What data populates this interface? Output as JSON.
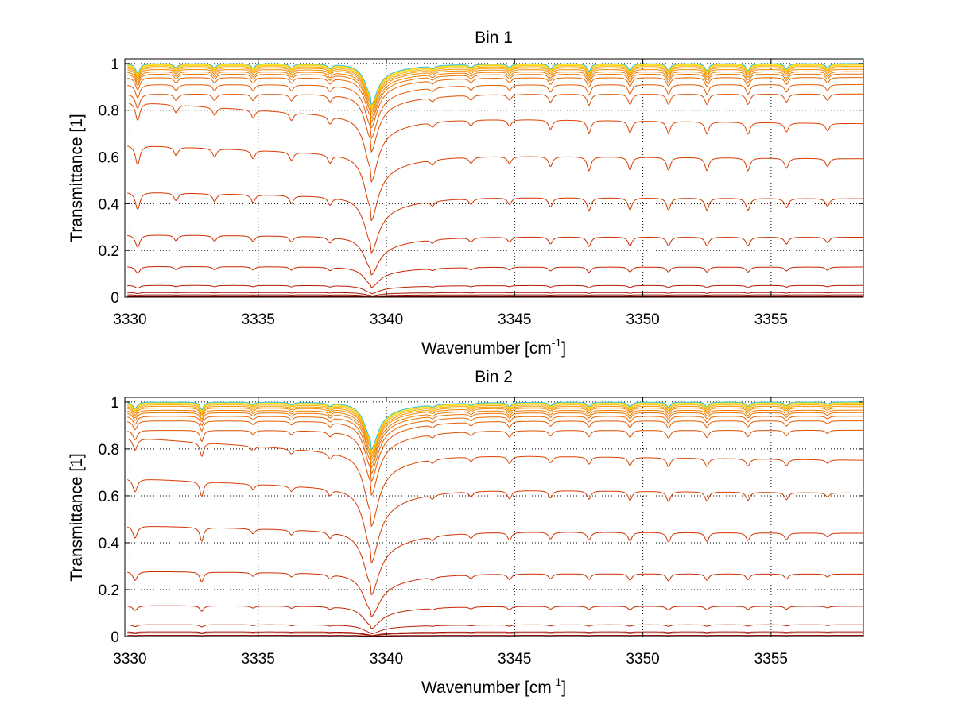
{
  "chart_data": [
    {
      "type": "line",
      "title": "Bin 1",
      "xlabel": "Wavenumber [cm",
      "xlabel_sup": "-1",
      "xlabel_end": "]",
      "ylabel": "Transmittance [1]",
      "xlim": [
        3329.8,
        3358.6
      ],
      "ylim": [
        0,
        1.02
      ],
      "xticks": [
        3330,
        3335,
        3340,
        3345,
        3350,
        3355
      ],
      "xticklabels": [
        "3330",
        "3335",
        "3340",
        "3345",
        "3350",
        "3355"
      ],
      "yticks": [
        0,
        0.2,
        0.4,
        0.6,
        0.8,
        1
      ],
      "yticklabels": [
        "0",
        "0.2",
        "0.4",
        "0.6",
        "0.8",
        "1"
      ],
      "grid": true,
      "baselines": [
        0.003,
        0.01,
        0.02,
        0.05,
        0.13,
        0.26,
        0.43,
        0.61,
        0.77,
        0.87,
        0.91,
        0.94,
        0.955,
        0.965,
        0.975,
        0.982,
        0.988,
        0.993,
        0.997,
        1.0
      ],
      "colors": [
        "#8b0000",
        "#9a0a00",
        "#a81400",
        "#b81e00",
        "#c52600",
        "#cc2e00",
        "#d23400",
        "#d83c00",
        "#dc4400",
        "#e04e00",
        "#e45a00",
        "#e86600",
        "#ec7200",
        "#f07e00",
        "#f48a00",
        "#f89800",
        "#fcb000",
        "#ffc800",
        "#ffe000",
        "#2fbfdf"
      ],
      "strong_line": {
        "x": 3339.4,
        "depth": 0.6,
        "width": 0.28
      },
      "lines": [
        {
          "x": 3330.3,
          "depth": 0.18,
          "width": 0.1
        },
        {
          "x": 3331.8,
          "depth": 0.08,
          "width": 0.09
        },
        {
          "x": 3333.3,
          "depth": 0.08,
          "width": 0.09
        },
        {
          "x": 3334.8,
          "depth": 0.08,
          "width": 0.09
        },
        {
          "x": 3336.3,
          "depth": 0.08,
          "width": 0.09
        },
        {
          "x": 3337.8,
          "depth": 0.08,
          "width": 0.09
        },
        {
          "x": 3341.8,
          "depth": 0.05,
          "width": 0.09
        },
        {
          "x": 3343.3,
          "depth": 0.06,
          "width": 0.09
        },
        {
          "x": 3344.8,
          "depth": 0.07,
          "width": 0.09
        },
        {
          "x": 3346.4,
          "depth": 0.1,
          "width": 0.09
        },
        {
          "x": 3347.9,
          "depth": 0.14,
          "width": 0.09
        },
        {
          "x": 3349.5,
          "depth": 0.13,
          "width": 0.09
        },
        {
          "x": 3351.0,
          "depth": 0.13,
          "width": 0.09
        },
        {
          "x": 3352.5,
          "depth": 0.13,
          "width": 0.09
        },
        {
          "x": 3354.1,
          "depth": 0.13,
          "width": 0.09
        },
        {
          "x": 3355.6,
          "depth": 0.1,
          "width": 0.09
        },
        {
          "x": 3357.2,
          "depth": 0.08,
          "width": 0.09
        }
      ]
    },
    {
      "type": "line",
      "title": "Bin 2",
      "xlabel": "Wavenumber [cm",
      "xlabel_sup": "-1",
      "xlabel_end": "]",
      "ylabel": "Transmittance [1]",
      "xlim": [
        3329.8,
        3358.6
      ],
      "ylim": [
        0,
        1.02
      ],
      "xticks": [
        3330,
        3335,
        3340,
        3345,
        3350,
        3355
      ],
      "xticklabels": [
        "3330",
        "3335",
        "3340",
        "3345",
        "3350",
        "3355"
      ],
      "yticks": [
        0,
        0.2,
        0.4,
        0.6,
        0.8,
        1
      ],
      "yticklabels": [
        "0",
        "0.2",
        "0.4",
        "0.6",
        "0.8",
        "1"
      ],
      "grid": true,
      "baselines": [
        0.005,
        0.015,
        0.02,
        0.05,
        0.13,
        0.27,
        0.45,
        0.63,
        0.78,
        0.88,
        0.92,
        0.94,
        0.955,
        0.965,
        0.975,
        0.982,
        0.988,
        0.993,
        0.997,
        1.0
      ],
      "colors": [
        "#8b0000",
        "#9a0a00",
        "#a81400",
        "#b81e00",
        "#c52600",
        "#cc2e00",
        "#d23400",
        "#d83c00",
        "#dc4400",
        "#e04e00",
        "#e45a00",
        "#e86600",
        "#ec7200",
        "#f07e00",
        "#f48a00",
        "#f89800",
        "#fcb000",
        "#ffc800",
        "#ffe000",
        "#2fbfdf"
      ],
      "strong_line": {
        "x": 3339.4,
        "depth": 0.7,
        "width": 0.3
      },
      "lines": [
        {
          "x": 3330.2,
          "depth": 0.12,
          "width": 0.1
        },
        {
          "x": 3332.8,
          "depth": 0.14,
          "width": 0.08
        },
        {
          "x": 3334.8,
          "depth": 0.05,
          "width": 0.09
        },
        {
          "x": 3336.3,
          "depth": 0.05,
          "width": 0.09
        },
        {
          "x": 3337.8,
          "depth": 0.06,
          "width": 0.09
        },
        {
          "x": 3341.8,
          "depth": 0.04,
          "width": 0.09
        },
        {
          "x": 3343.3,
          "depth": 0.05,
          "width": 0.09
        },
        {
          "x": 3344.8,
          "depth": 0.08,
          "width": 0.09
        },
        {
          "x": 3346.4,
          "depth": 0.07,
          "width": 0.09
        },
        {
          "x": 3347.9,
          "depth": 0.08,
          "width": 0.09
        },
        {
          "x": 3349.5,
          "depth": 0.09,
          "width": 0.09
        },
        {
          "x": 3351.0,
          "depth": 0.1,
          "width": 0.09
        },
        {
          "x": 3352.5,
          "depth": 0.09,
          "width": 0.09
        },
        {
          "x": 3354.1,
          "depth": 0.08,
          "width": 0.09
        },
        {
          "x": 3355.6,
          "depth": 0.07,
          "width": 0.09
        },
        {
          "x": 3357.2,
          "depth": 0.04,
          "width": 0.09
        }
      ]
    }
  ]
}
